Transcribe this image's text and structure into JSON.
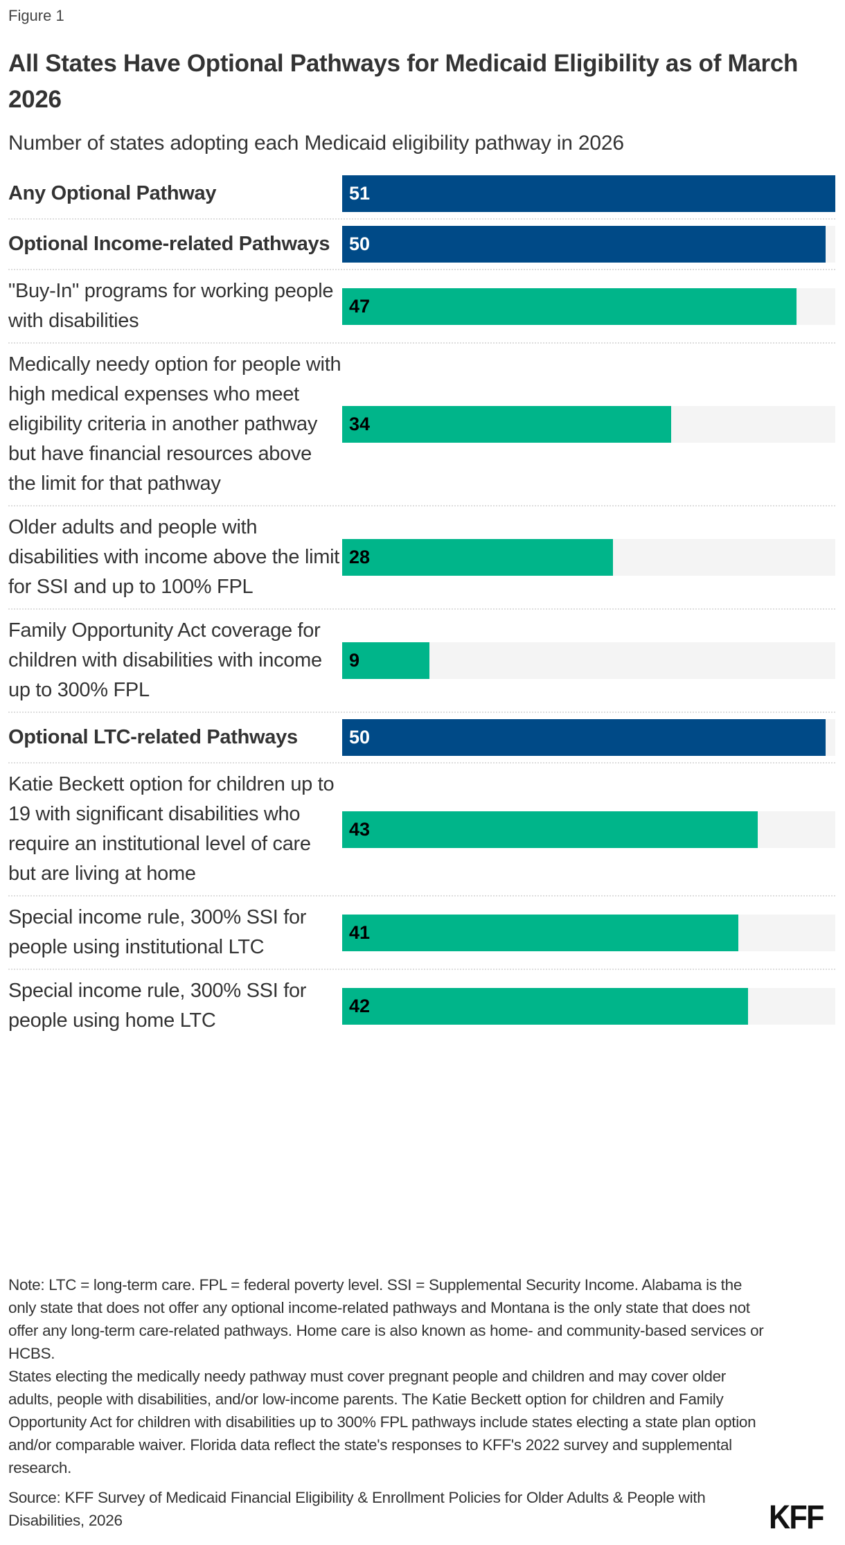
{
  "figure_label": "Figure 1",
  "chart_data": {
    "type": "bar",
    "orientation": "horizontal",
    "title": "All States Have Optional Pathways for Medicaid Eligibility as of March 2026",
    "subtitle": "Number of states adopting each Medicaid eligibility pathway in 2026",
    "categories": [
      "Any Optional Pathway",
      "Optional Income-related Pathways",
      "\"Buy-In\" programs for working people with disabilities",
      "Medically needy option for people with high medical expenses who meet eligibility criteria in another pathway but have financial resources above the limit for that pathway",
      "Older adults and people with disabilities with income above the limit for SSI and up to 100% FPL",
      "Family Opportunity Act coverage for children with disabilities with income up to 300% FPL",
      "Optional LTC-related Pathways",
      "Katie Beckett option for children up to 19 with significant disabilities who require an institutional level of care but are living at home",
      "Special income rule, 300% SSI for people using institutional LTC",
      "Special income rule, 300% SSI for people using home LTC"
    ],
    "values": [
      51,
      50,
      47,
      34,
      28,
      9,
      50,
      43,
      41,
      42
    ],
    "row_kind": [
      "summary",
      "summary",
      "detail",
      "detail",
      "detail",
      "detail",
      "summary",
      "detail",
      "detail",
      "detail"
    ],
    "xlim": [
      0,
      51
    ],
    "grid": false,
    "data_labels": true,
    "colors": {
      "summary": "#004a87",
      "detail": "#00b58a",
      "track": "#f4f4f4",
      "summary_label": "#ffffff",
      "detail_label": "#000000"
    }
  },
  "notes": [
    "Note: LTC = long-term care. FPL = federal poverty level. SSI = Supplemental Security Income. Alabama is the only state that does not offer any optional income-related pathways and Montana is the only state that does not offer any long-term care-related pathways. Home care is also known as home- and community-based services or HCBS.",
    "States electing the medically needy pathway must cover pregnant people and children and may cover older adults, people with disabilities, and/or low-income parents. The Katie Beckett option for children and Family Opportunity Act for children with disabilities up to 300% FPL pathways include states electing a state plan option and/or comparable waiver. Florida data reflect the state's responses to KFF's 2022 survey and supplemental research."
  ],
  "source": "Source: KFF Survey of Medicaid Financial Eligibility & Enrollment Policies for Older Adults & People with Disabilities, 2026",
  "logo": "KFF"
}
